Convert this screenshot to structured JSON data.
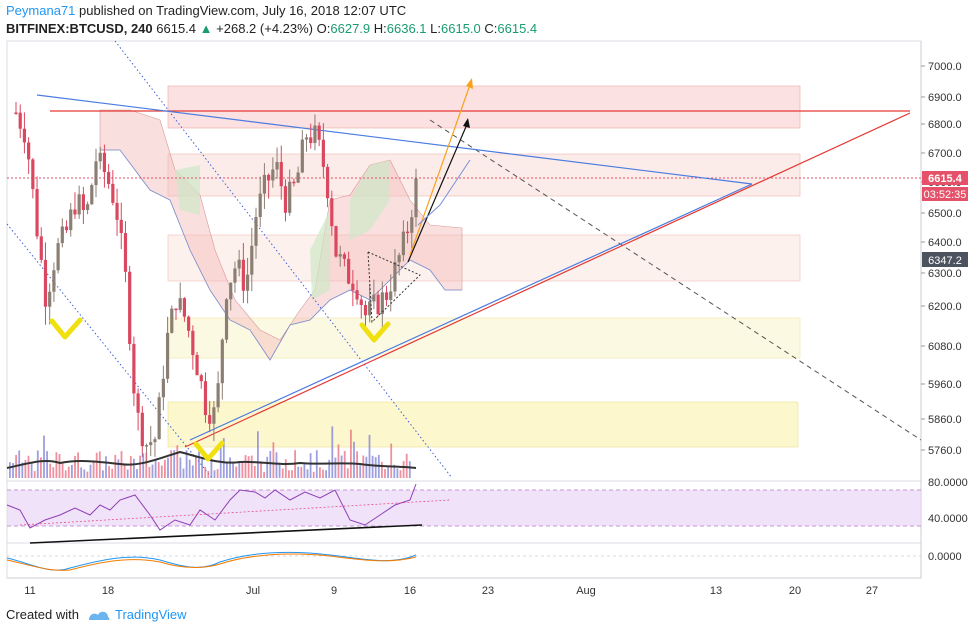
{
  "header": {
    "author": "Peymana71",
    "published": "published on TradingView.com, July 16, 2018 12:07 UTC",
    "symbol": "BITFINEX:BTCUSD, 240",
    "last": "6615.4",
    "change": "+268.2 (+4.23%)",
    "o_label": "O:",
    "o_val": "6627.9",
    "h_label": "H:",
    "h_val": "6636.1",
    "l_label": "L:",
    "l_val": "6615.0",
    "c_label": "C:",
    "c_val": "6615.4"
  },
  "price_badges": {
    "last": "6615.4",
    "countdown": "03:52:35",
    "level": "6347.2"
  },
  "footer": {
    "created_with": "Created with",
    "brand": "TradingView"
  },
  "colors": {
    "up": "#8b7f74",
    "down": "#d9485f",
    "last_badge": "#e55168",
    "grey_badge": "#4c525e",
    "trend_blue": "#4a7be0",
    "trend_red": "#e53935",
    "rsi_purple": "#8e3fb5",
    "yellow": "#f0e010"
  },
  "chart_data": {
    "type": "line",
    "title": "",
    "y_axis": {
      "min": 5650,
      "max": 7080,
      "ticks": [
        "7000.0",
        "6900.0",
        "6800.0",
        "6700.0",
        "6600.0",
        "6500.0",
        "6400.0",
        "6300.0",
        "6200.0",
        "6080.0",
        "5960.0",
        "5860.0",
        "5760.0"
      ]
    },
    "x_axis": {
      "ticks": [
        "11",
        "18",
        "Jul",
        "9",
        "16",
        "23",
        "Aug",
        "13",
        "20",
        "27"
      ]
    },
    "series": [
      {
        "values": [
          6850,
          6780,
          6500,
          6250,
          6400,
          6460,
          6570,
          6510,
          6700,
          6650,
          6550,
          6300,
          5880,
          5780,
          5800,
          6100,
          6250,
          6180,
          6050,
          5900,
          5870,
          6280,
          6360,
          6290,
          6520,
          6620,
          6680,
          6560,
          6620,
          6780,
          6770,
          6650,
          6400,
          6330,
          6300,
          6190,
          6230,
          6260,
          6350,
          6450,
          6615
        ]
      }
    ],
    "rsi_panel": {
      "ticks": [
        "80.0000",
        "40.0000"
      ]
    },
    "macd_panel": {
      "ticks": [
        "0.0000"
      ]
    }
  }
}
